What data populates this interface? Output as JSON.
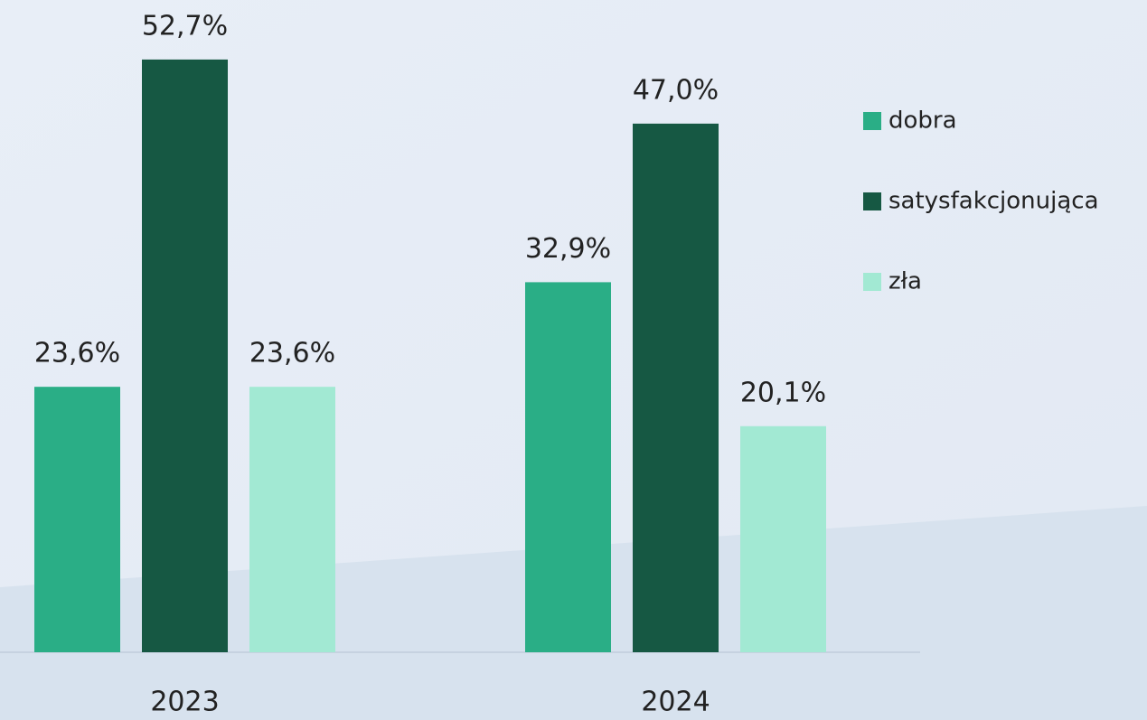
{
  "chart_data": {
    "type": "bar",
    "categories": [
      "2023",
      "2024"
    ],
    "series": [
      {
        "name": "dobra",
        "color": "#2aae86",
        "values": [
          23.6,
          32.9
        ],
        "value_labels": [
          "23,6%",
          "32,9%"
        ]
      },
      {
        "name": "satysfakcjonująca",
        "color": "#165843",
        "values": [
          52.7,
          47.0
        ],
        "value_labels": [
          "52,7%",
          "47,0%"
        ]
      },
      {
        "name": "zła",
        "color": "#a2e9d3",
        "values": [
          23.6,
          20.1
        ],
        "value_labels": [
          "23,6%",
          "20,1%"
        ]
      }
    ],
    "legend": "right"
  }
}
